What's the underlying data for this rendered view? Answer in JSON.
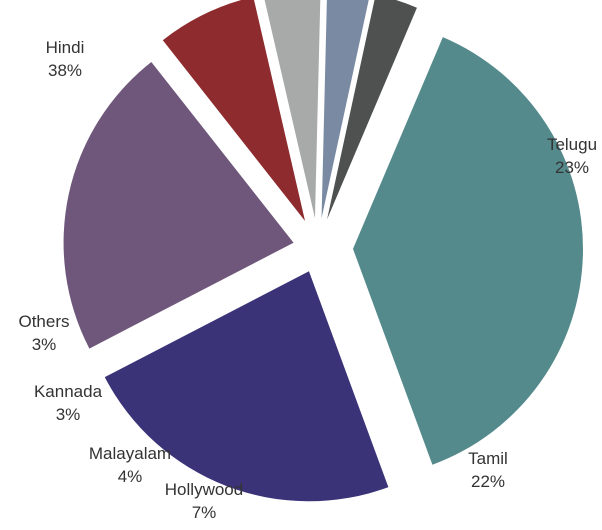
{
  "chart_data": {
    "type": "pie",
    "exploded": true,
    "slices": [
      {
        "label": "Hindi",
        "value": 38,
        "value_label": "38%",
        "color": "#548a8c"
      },
      {
        "label": "Telugu",
        "value": 23,
        "value_label": "23%",
        "color": "#3a3378"
      },
      {
        "label": "Tamil",
        "value": 22,
        "value_label": "22%",
        "color": "#6e577a"
      },
      {
        "label": "Hollywood",
        "value": 7,
        "value_label": "7%",
        "color": "#8e2b2e"
      },
      {
        "label": "Malayalam",
        "value": 4,
        "value_label": "4%",
        "color": "#a8aaa9"
      },
      {
        "label": "Kannada",
        "value": 3,
        "value_label": "3%",
        "color": "#7a8aa3"
      },
      {
        "label": "Others",
        "value": 3,
        "value_label": "3%",
        "color": "#4e5150"
      }
    ]
  }
}
